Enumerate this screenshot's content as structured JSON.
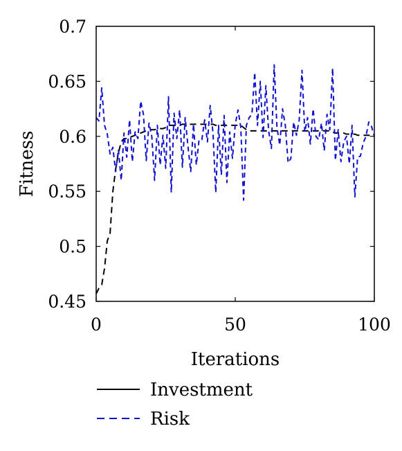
{
  "chart_data": {
    "type": "line",
    "title": "",
    "xlabel": "Iterations",
    "ylabel": "Fitness",
    "xlim": [
      0,
      100
    ],
    "ylim": [
      0.45,
      0.7
    ],
    "x_ticks": [
      0,
      50,
      100
    ],
    "x_tick_labels": [
      "0",
      "50",
      "100"
    ],
    "y_ticks": [
      0.45,
      0.5,
      0.55,
      0.6,
      0.65,
      0.7
    ],
    "y_tick_labels": [
      "0.45",
      "0.5",
      "0.55",
      "0.6",
      "0.65",
      "0.7"
    ],
    "grid": false,
    "legend_position": "bottom",
    "x": [
      0,
      1,
      2,
      3,
      4,
      5,
      6,
      7,
      8,
      9,
      10,
      11,
      12,
      13,
      14,
      15,
      16,
      17,
      18,
      19,
      20,
      21,
      22,
      23,
      24,
      25,
      26,
      27,
      28,
      29,
      30,
      31,
      32,
      33,
      34,
      35,
      36,
      37,
      38,
      39,
      40,
      41,
      42,
      43,
      44,
      45,
      46,
      47,
      48,
      49,
      50,
      51,
      52,
      53,
      54,
      55,
      56,
      57,
      58,
      59,
      60,
      61,
      62,
      63,
      64,
      65,
      66,
      67,
      68,
      69,
      70,
      71,
      72,
      73,
      74,
      75,
      76,
      77,
      78,
      79,
      80,
      81,
      82,
      83,
      84,
      85,
      86,
      87,
      88,
      89,
      90,
      91,
      92,
      93,
      94,
      95,
      96,
      97,
      98,
      99,
      100
    ],
    "series": [
      {
        "name": "Investment",
        "color": "#000000",
        "line_style": "dashed",
        "values": [
          0.457,
          0.462,
          0.465,
          0.48,
          0.505,
          0.512,
          0.55,
          0.57,
          0.585,
          0.595,
          0.598,
          0.598,
          0.599,
          0.6,
          0.601,
          0.602,
          0.603,
          0.604,
          0.605,
          0.606,
          0.606,
          0.606,
          0.607,
          0.607,
          0.607,
          0.608,
          0.61,
          0.61,
          0.61,
          0.61,
          0.61,
          0.611,
          0.611,
          0.611,
          0.611,
          0.611,
          0.611,
          0.611,
          0.611,
          0.611,
          0.611,
          0.611,
          0.611,
          0.61,
          0.61,
          0.61,
          0.61,
          0.61,
          0.61,
          0.61,
          0.61,
          0.61,
          0.61,
          0.608,
          0.606,
          0.605,
          0.605,
          0.605,
          0.605,
          0.605,
          0.605,
          0.605,
          0.605,
          0.605,
          0.605,
          0.605,
          0.605,
          0.605,
          0.605,
          0.605,
          0.605,
          0.605,
          0.605,
          0.605,
          0.605,
          0.605,
          0.605,
          0.605,
          0.605,
          0.605,
          0.605,
          0.605,
          0.605,
          0.605,
          0.605,
          0.604,
          0.603,
          0.603,
          0.603,
          0.603,
          0.602,
          0.602,
          0.602,
          0.602,
          0.601,
          0.601,
          0.601,
          0.601,
          0.601,
          0.6,
          0.6
        ]
      },
      {
        "name": "Risk",
        "color": "#1010d0",
        "line_style": "dashed",
        "values": [
          0.617,
          0.614,
          0.644,
          0.61,
          0.602,
          0.584,
          0.59,
          0.568,
          0.588,
          0.56,
          0.603,
          0.581,
          0.615,
          0.577,
          0.604,
          0.598,
          0.632,
          0.62,
          0.578,
          0.612,
          0.6,
          0.56,
          0.61,
          0.574,
          0.601,
          0.571,
          0.636,
          0.549,
          0.621,
          0.598,
          0.624,
          0.572,
          0.617,
          0.591,
          0.568,
          0.611,
          0.574,
          0.597,
          0.597,
          0.615,
          0.595,
          0.628,
          0.603,
          0.549,
          0.61,
          0.565,
          0.619,
          0.558,
          0.604,
          0.58,
          0.611,
          0.624,
          0.608,
          0.542,
          0.61,
          0.617,
          0.62,
          0.658,
          0.61,
          0.65,
          0.599,
          0.646,
          0.605,
          0.589,
          0.665,
          0.608,
          0.592,
          0.625,
          0.61,
          0.576,
          0.58,
          0.613,
          0.601,
          0.615,
          0.66,
          0.604,
          0.617,
          0.593,
          0.625,
          0.6,
          0.597,
          0.612,
          0.587,
          0.62,
          0.606,
          0.662,
          0.578,
          0.606,
          0.577,
          0.595,
          0.6,
          0.575,
          0.61,
          0.545,
          0.581,
          0.582,
          0.594,
          0.6,
          0.613,
          0.609,
          0.6
        ]
      }
    ]
  }
}
